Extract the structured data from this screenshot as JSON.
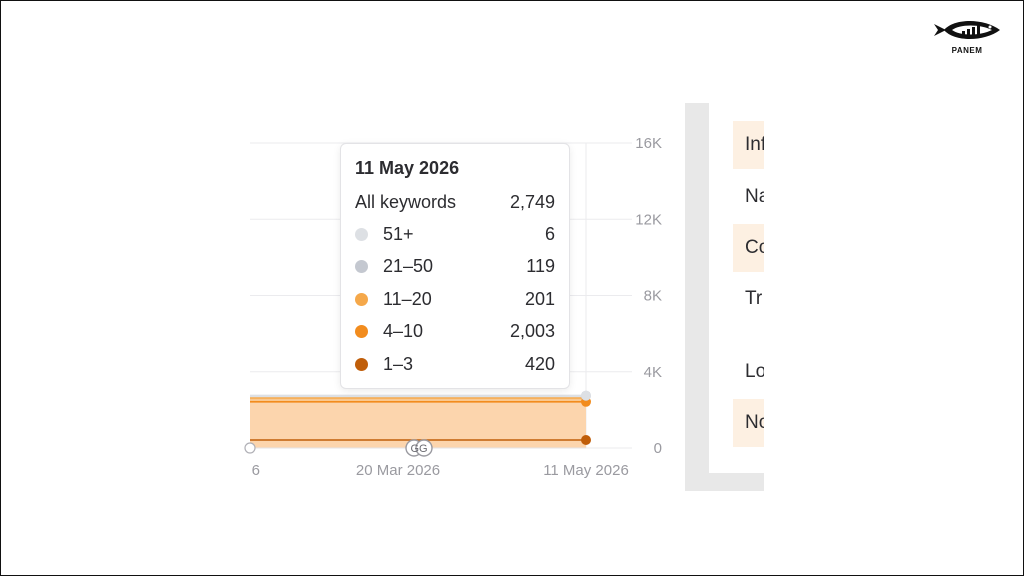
{
  "brand": {
    "name": "PANEM",
    "icon": "fish-logo-icon"
  },
  "chart_data": {
    "type": "area",
    "stacked": true,
    "x_tick_labels": [
      "6",
      "20 Mar 2026",
      "11 May 2026"
    ],
    "y_tick_labels": [
      "0",
      "4K",
      "8K",
      "12K",
      "16K"
    ],
    "ylim": [
      0,
      16000
    ],
    "y_axis_position": "right",
    "grid": true,
    "x": [
      "20 Mar 2026",
      "11 May 2026"
    ],
    "series": [
      {
        "name": "1–3",
        "color": "#c05e0a",
        "values": [
          420,
          420
        ]
      },
      {
        "name": "4–10",
        "color": "#f28c1e",
        "values": [
          2003,
          2003
        ]
      },
      {
        "name": "11–20",
        "color": "#f5a84a",
        "values": [
          201,
          201
        ]
      },
      {
        "name": "21–50",
        "color": "#c4c8d0",
        "values": [
          119,
          119
        ]
      },
      {
        "name": "51+",
        "color": "#dde0e4",
        "values": [
          6,
          6
        ]
      }
    ],
    "tooltip": {
      "date": "11 May 2026",
      "total_label": "All keywords",
      "total_value": "2,749",
      "rows": [
        {
          "label": "51+",
          "value": "6",
          "color": "#dde0e4"
        },
        {
          "label": "21–50",
          "value": "119",
          "color": "#c4c8d0"
        },
        {
          "label": "11–20",
          "value": "201",
          "color": "#f5a84a"
        },
        {
          "label": "4–10",
          "value": "2,003",
          "color": "#f28c1e"
        },
        {
          "label": "1–3",
          "value": "420",
          "color": "#c05e0a"
        }
      ]
    },
    "annotation_badge": "GG"
  },
  "side_panel": {
    "cells": [
      {
        "text": "Inf",
        "tinted": true
      },
      {
        "text": "Na",
        "tinted": false
      },
      {
        "text": "Co",
        "tinted": true
      },
      {
        "text": "Tr",
        "tinted": false
      },
      {
        "text": "Lo",
        "tinted": false
      },
      {
        "text": "No",
        "tinted": true
      }
    ]
  }
}
